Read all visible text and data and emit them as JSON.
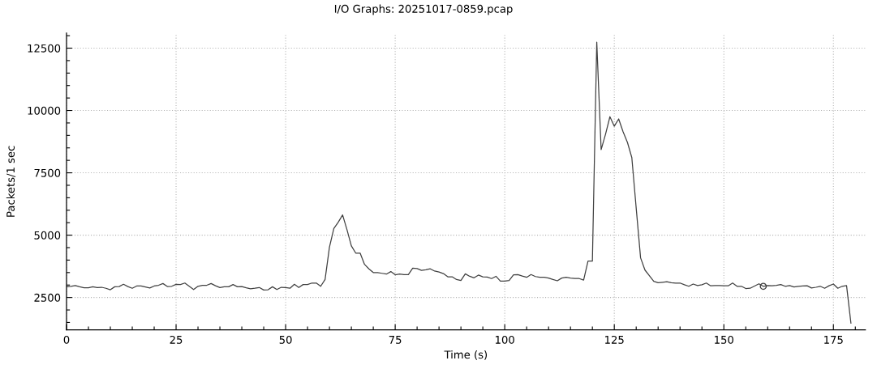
{
  "chart_data": {
    "type": "line",
    "title": "I/O Graphs: 20251017-0859.pcap",
    "xlabel": "Time (s)",
    "ylabel": "Packets/1 sec",
    "x": [
      0,
      1,
      2,
      3,
      4,
      5,
      6,
      7,
      8,
      9,
      10,
      11,
      12,
      13,
      14,
      15,
      16,
      17,
      18,
      19,
      20,
      21,
      22,
      23,
      24,
      25,
      26,
      27,
      28,
      29,
      30,
      31,
      32,
      33,
      34,
      35,
      36,
      37,
      38,
      39,
      40,
      41,
      42,
      43,
      44,
      45,
      46,
      47,
      48,
      49,
      50,
      51,
      52,
      53,
      54,
      55,
      56,
      57,
      58,
      59,
      60,
      61,
      62,
      63,
      64,
      65,
      66,
      67,
      68,
      69,
      70,
      71,
      72,
      73,
      74,
      75,
      76,
      77,
      78,
      79,
      80,
      81,
      82,
      83,
      84,
      85,
      86,
      87,
      88,
      89,
      90,
      91,
      92,
      93,
      94,
      95,
      96,
      97,
      98,
      99,
      100,
      101,
      102,
      103,
      104,
      105,
      106,
      107,
      108,
      109,
      110,
      111,
      112,
      113,
      114,
      115,
      116,
      117,
      118,
      119,
      120,
      121,
      122,
      123,
      124,
      125,
      126,
      127,
      128,
      129,
      130,
      131,
      132,
      133,
      134,
      135,
      136,
      137,
      138,
      139,
      140,
      141,
      142,
      143,
      144,
      145,
      146,
      147,
      148,
      149,
      150,
      151,
      152,
      153,
      154,
      155,
      156,
      157,
      158,
      159,
      160,
      161,
      162,
      163,
      164,
      165,
      166,
      167,
      168,
      169,
      170,
      171,
      172,
      173,
      174,
      175,
      176,
      177,
      178,
      179
    ],
    "series": [
      {
        "color": "#404040",
        "values": [
          2930,
          2950,
          2980,
          2930,
          2890,
          2890,
          2930,
          2900,
          2910,
          2870,
          2810,
          2930,
          2940,
          3030,
          2940,
          2870,
          2960,
          2960,
          2920,
          2880,
          2960,
          2990,
          3060,
          2940,
          2950,
          3030,
          3020,
          3080,
          2950,
          2820,
          2950,
          2990,
          2990,
          3060,
          2970,
          2900,
          2930,
          2930,
          3020,
          2930,
          2940,
          2890,
          2850,
          2870,
          2900,
          2800,
          2810,
          2930,
          2820,
          2910,
          2900,
          2870,
          3030,
          2900,
          3020,
          3020,
          3080,
          3080,
          2950,
          3220,
          4520,
          5270,
          5520,
          5810,
          5220,
          4570,
          4280,
          4280,
          3830,
          3650,
          3500,
          3500,
          3470,
          3440,
          3540,
          3410,
          3440,
          3420,
          3420,
          3680,
          3660,
          3590,
          3610,
          3650,
          3560,
          3520,
          3460,
          3330,
          3330,
          3220,
          3180,
          3450,
          3350,
          3290,
          3400,
          3330,
          3320,
          3260,
          3350,
          3160,
          3160,
          3180,
          3410,
          3420,
          3360,
          3310,
          3420,
          3340,
          3310,
          3310,
          3280,
          3220,
          3170,
          3280,
          3310,
          3280,
          3260,
          3260,
          3200,
          3960,
          3960,
          12740,
          8430,
          9050,
          9750,
          9370,
          9660,
          9150,
          8720,
          8110,
          6080,
          4090,
          3600,
          3380,
          3150,
          3090,
          3110,
          3130,
          3090,
          3080,
          3080,
          3010,
          2950,
          3040,
          2980,
          3010,
          3080,
          2970,
          2980,
          2980,
          2970,
          2970,
          3080,
          2950,
          2950,
          2860,
          2870,
          2960,
          3050,
          2950,
          2980,
          2970,
          2990,
          3020,
          2950,
          2980,
          2920,
          2950,
          2960,
          2970,
          2880,
          2910,
          2950,
          2870,
          2970,
          3040,
          2870,
          2950,
          2980,
          1470
        ]
      },
      {
        "type": "scatter",
        "color": "#404040",
        "marker": "circle",
        "x": [
          159
        ],
        "values": [
          2950
        ]
      }
    ],
    "xlim": [
      0,
      182.3
    ],
    "ylim": [
      1200,
      13100
    ],
    "xticks": [
      0,
      25,
      50,
      75,
      100,
      125,
      150,
      175
    ],
    "yticks": [
      2500,
      5000,
      7500,
      10000,
      12500
    ],
    "grid": true
  }
}
